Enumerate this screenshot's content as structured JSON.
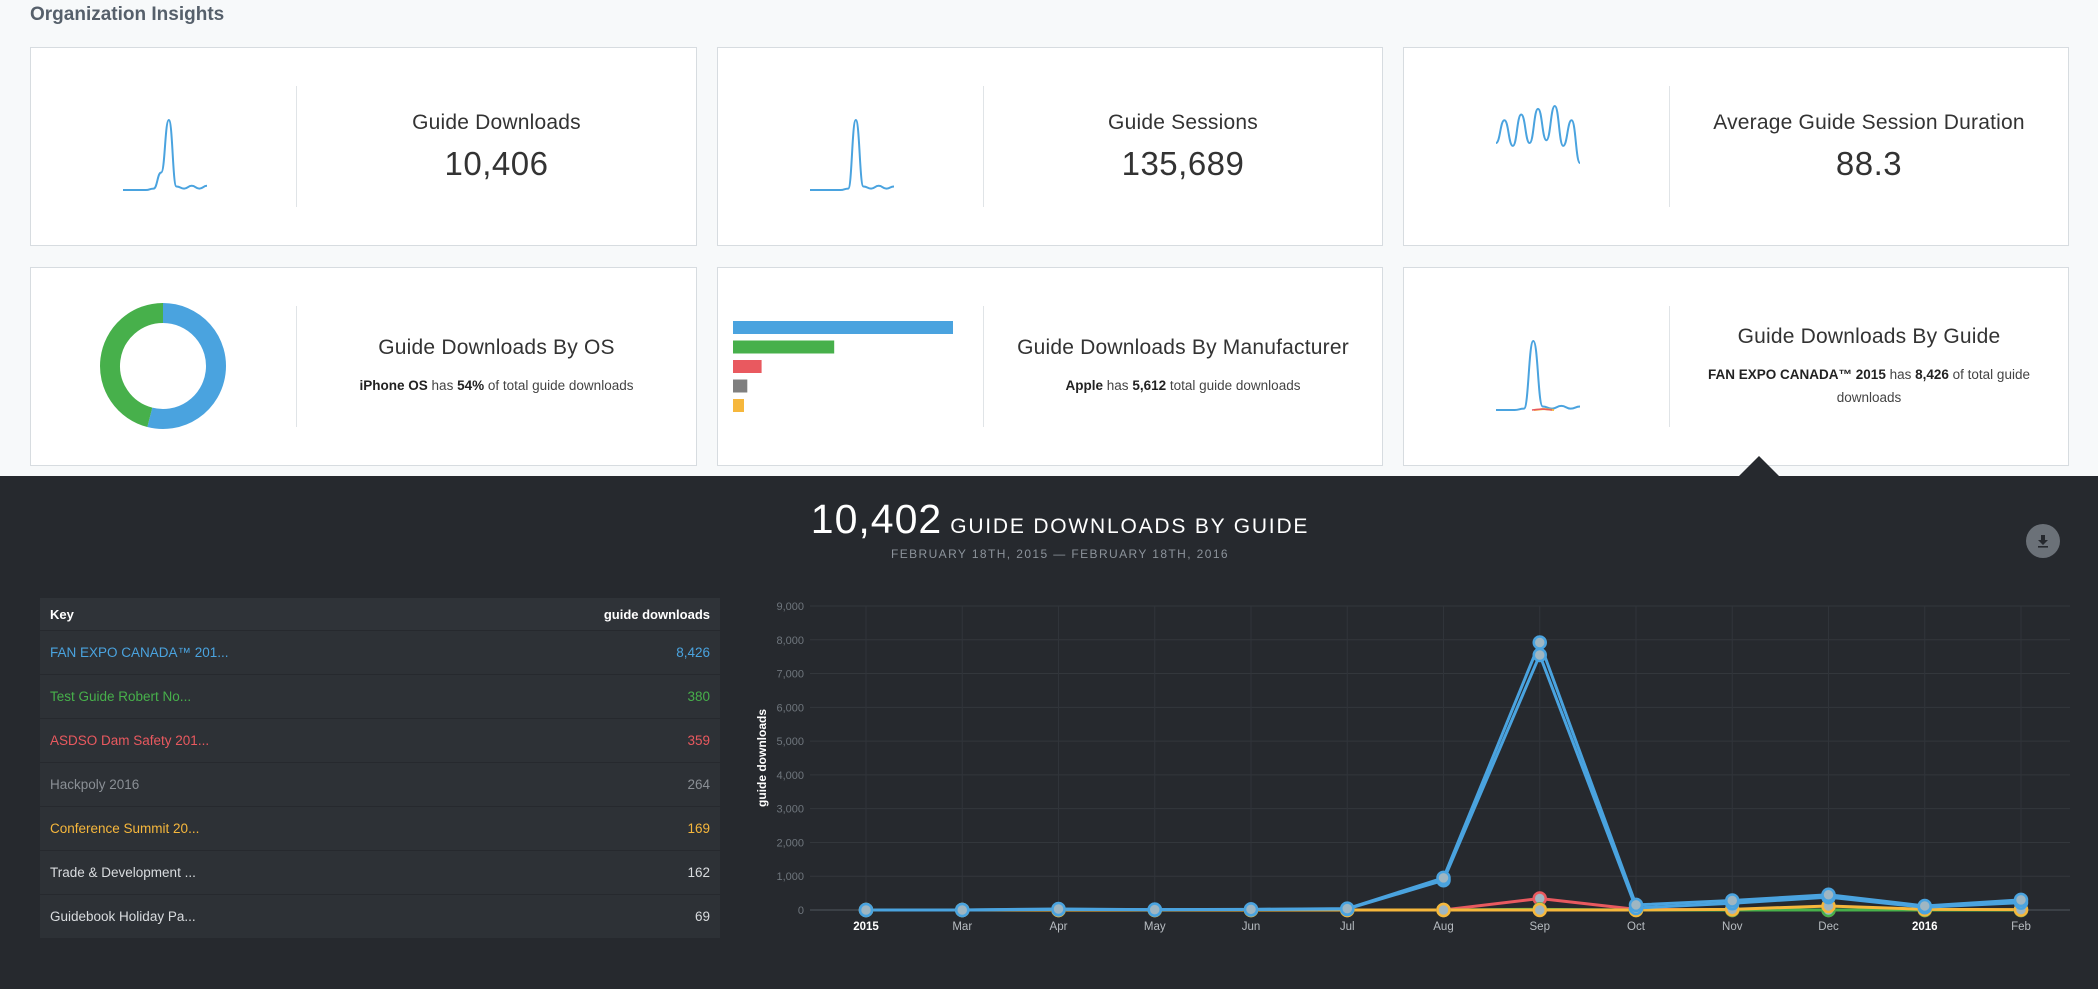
{
  "page_title": "Organization Insights",
  "cards": {
    "downloads": {
      "title": "Guide Downloads",
      "value": "10,406"
    },
    "sessions": {
      "title": "Guide Sessions",
      "value": "135,689"
    },
    "duration": {
      "title": "Average Guide Session Duration",
      "value": "88.3"
    },
    "by_os": {
      "title": "Guide Downloads By OS",
      "name": "iPhone OS",
      "mid": " has ",
      "pct": "54%",
      "tail": " of total guide downloads",
      "donut_share": 0.54,
      "colors": {
        "primary": "#4aa3df",
        "secondary": "#47b04b"
      }
    },
    "by_manufacturer": {
      "title": "Guide Downloads By Manufacturer",
      "name": "Apple",
      "mid": " has ",
      "count": "5,612",
      "tail": " total guide downloads",
      "bar_shares": [
        1.0,
        0.46,
        0.13,
        0.065,
        0.05
      ],
      "bar_colors": [
        "#4aa3df",
        "#47b04b",
        "#e9595f",
        "#7f7f7f",
        "#f6b73c"
      ]
    },
    "by_guide": {
      "title": "Guide Downloads By Guide",
      "name": "FAN EXPO CANADA™ 2015",
      "mid": " has ",
      "count": "8,426",
      "tail": " of total guide downloads"
    }
  },
  "detail": {
    "headline_number": "10,402",
    "headline_label": "GUIDE DOWNLOADS BY GUIDE",
    "date_range": "FEBRUARY 18TH, 2015 — FEBRUARY 18TH, 2016",
    "download_icon": "download-icon",
    "table": {
      "col_key": "Key",
      "col_value": "guide downloads",
      "rows": [
        {
          "name": "FAN EXPO CANADA™ 201...",
          "value": "8,426",
          "color": "#4aa3df"
        },
        {
          "name": "Test Guide Robert No...",
          "value": "380",
          "color": "#47b04b"
        },
        {
          "name": "ASDSO Dam Safety 201...",
          "value": "359",
          "color": "#e9595f"
        },
        {
          "name": "Hackpoly 2016",
          "value": "264",
          "color": "#8a8f95"
        },
        {
          "name": "Conference Summit 20...",
          "value": "169",
          "color": "#f6b73c"
        },
        {
          "name": "Trade & Development ...",
          "value": "162",
          "color": "#d9dcdf"
        },
        {
          "name": "Guidebook Holiday Pa...",
          "value": "69",
          "color": "#d9dcdf"
        }
      ]
    }
  },
  "chart_data": {
    "type": "line",
    "ylabel": "guide downloads",
    "ylim": [
      0,
      9000
    ],
    "yticks": [
      "0",
      "1,000",
      "2,000",
      "3,000",
      "4,000",
      "5,000",
      "6,000",
      "7,000",
      "8,000",
      "9,000"
    ],
    "categories": [
      "2015",
      "Mar",
      "Apr",
      "May",
      "Jun",
      "Jul",
      "Aug",
      "Sep",
      "Oct",
      "Nov",
      "Dec",
      "2016",
      "Feb"
    ],
    "bold_categories": [
      "2015",
      "2016"
    ],
    "series": [
      {
        "color": "#4aa3df",
        "values": [
          0,
          0,
          30,
          10,
          20,
          40,
          950,
          7920,
          150,
          280,
          450,
          120,
          300
        ]
      },
      {
        "color": "#4aa3df",
        "values": [
          0,
          0,
          20,
          10,
          15,
          30,
          880,
          7550,
          60,
          200,
          380,
          80,
          220
        ]
      },
      {
        "color": "#e9595f",
        "values": [
          0,
          0,
          0,
          0,
          0,
          0,
          0,
          340,
          20,
          0,
          0,
          0,
          0
        ]
      },
      {
        "color": "#47b04b",
        "values": [
          0,
          0,
          0,
          0,
          0,
          0,
          0,
          20,
          0,
          0,
          0,
          0,
          0
        ]
      },
      {
        "color": "#f6b73c",
        "values": [
          0,
          0,
          0,
          0,
          0,
          0,
          0,
          0,
          0,
          20,
          120,
          20,
          10
        ]
      }
    ]
  },
  "sparklines": {
    "downloads": [
      0,
      0,
      0,
      0,
      0.02,
      0.25,
      1.0,
      0.05,
      0.02,
      0.06,
      0.02,
      0.06
    ],
    "sessions": [
      0,
      0,
      0,
      0,
      0,
      0.02,
      1.0,
      0.05,
      0.02,
      0.06,
      0.02,
      0.05
    ],
    "duration": [
      0.35,
      0.75,
      0.3,
      0.85,
      0.35,
      0.95,
      0.4,
      1.0,
      0.3,
      0.75,
      0.0
    ],
    "by_guide": [
      0,
      0,
      0,
      0.02,
      1.0,
      0.05,
      0.02,
      0.06,
      0.02,
      0.05
    ]
  }
}
